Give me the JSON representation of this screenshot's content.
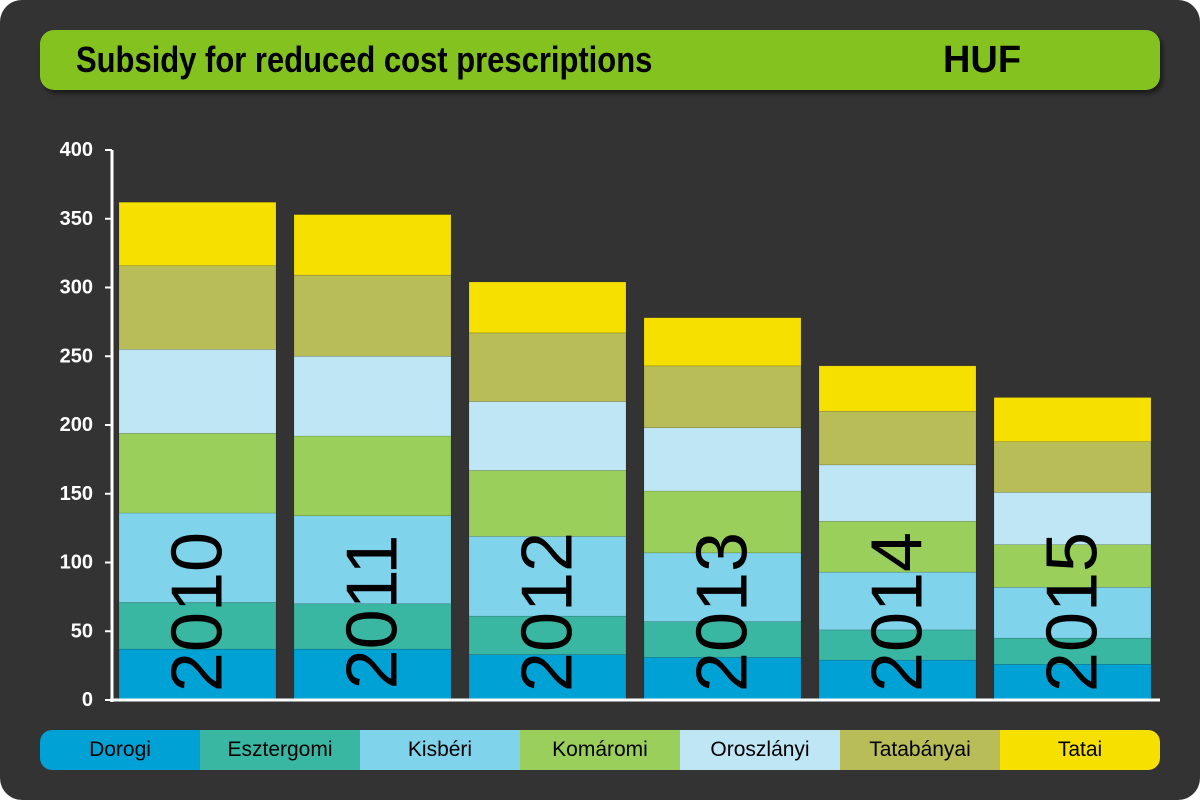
{
  "chart_data": {
    "type": "bar",
    "stacked": true,
    "title": "Subsidy for reduced cost prescriptions",
    "unit": "HUF",
    "categories": [
      "2010",
      "2011",
      "2012",
      "2013",
      "2014",
      "2015"
    ],
    "series": [
      {
        "name": "Dorogi",
        "color": "#00a2d6",
        "values": [
          37,
          37,
          33,
          31,
          29,
          26
        ]
      },
      {
        "name": "Esztergomi",
        "color": "#3ab7a3",
        "values": [
          34,
          33,
          28,
          26,
          22,
          19
        ]
      },
      {
        "name": "Kisbéri",
        "color": "#7fd3ea",
        "values": [
          65,
          64,
          58,
          50,
          42,
          37
        ]
      },
      {
        "name": "Komáromi",
        "color": "#9bcf5b",
        "values": [
          58,
          58,
          48,
          45,
          37,
          31
        ]
      },
      {
        "name": "Oroszlányi",
        "color": "#bfe6f5",
        "values": [
          61,
          58,
          50,
          46,
          41,
          38
        ]
      },
      {
        "name": "Tatabányai",
        "color": "#b9bd58",
        "values": [
          61,
          59,
          50,
          45,
          39,
          37
        ]
      },
      {
        "name": "Tatai",
        "color": "#f5e000",
        "values": [
          46,
          44,
          37,
          35,
          33,
          32
        ]
      }
    ],
    "ylim": [
      0,
      400
    ],
    "yticks": [
      0,
      50,
      100,
      150,
      200,
      250,
      300,
      350,
      400
    ],
    "grid": false,
    "legend_position": "bottom"
  }
}
